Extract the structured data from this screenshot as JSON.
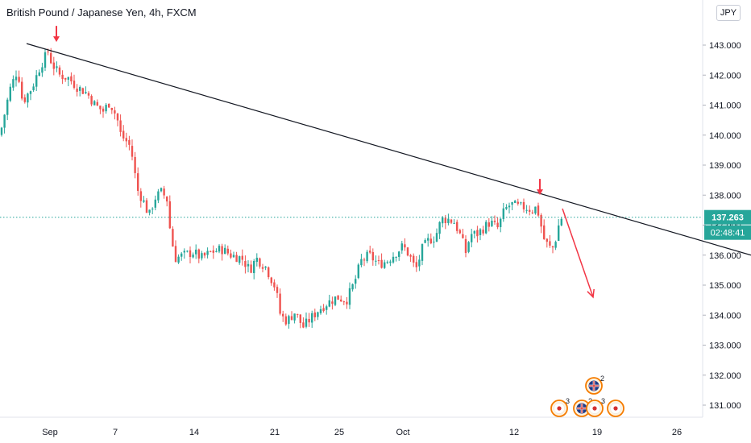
{
  "header": {
    "title": "British Pound / Japanese Yen, 4h, FXCM",
    "currency": "JPY"
  },
  "price_badge": {
    "price": "137.263",
    "countdown": "02:48:41",
    "color": "#26a69a"
  },
  "colors": {
    "up": "#26a69a",
    "down": "#ef5350",
    "trendline": "#131722",
    "arrow": "#f23645",
    "event_ring": "#f57c00"
  },
  "chart_data": {
    "type": "candlestick",
    "title": "British Pound / Japanese Yen, 4h, FXCM",
    "ylim": [
      130.6,
      144.2
    ],
    "y_ticks": [
      "143.000",
      "142.000",
      "141.000",
      "140.000",
      "139.000",
      "138.000",
      "137.000",
      "136.000",
      "135.000",
      "134.000",
      "133.000",
      "132.000",
      "131.000"
    ],
    "x_ticks": [
      "Sep",
      "7",
      "14",
      "21",
      "25",
      "Oct",
      "12",
      "19",
      "26"
    ],
    "close_path": [
      [
        0,
        140.0
      ],
      [
        12,
        141.5
      ],
      [
        22,
        142.2
      ],
      [
        28,
        141.1
      ],
      [
        40,
        141.6
      ],
      [
        50,
        142.3
      ],
      [
        60,
        142.8
      ],
      [
        64,
        142.4
      ],
      [
        74,
        142.0
      ],
      [
        85,
        141.9
      ],
      [
        96,
        141.6
      ],
      [
        108,
        141.4
      ],
      [
        118,
        141.0
      ],
      [
        128,
        140.8
      ],
      [
        136,
        141.1
      ],
      [
        145,
        140.6
      ],
      [
        150,
        140.0
      ],
      [
        160,
        139.7
      ],
      [
        165,
        139.2
      ],
      [
        170,
        138.2
      ],
      [
        178,
        137.8
      ],
      [
        185,
        137.3
      ],
      [
        192,
        137.9
      ],
      [
        200,
        138.1
      ],
      [
        207,
        137.9
      ],
      [
        212,
        136.6
      ],
      [
        218,
        135.9
      ],
      [
        228,
        136.0
      ],
      [
        240,
        136.1
      ],
      [
        250,
        135.9
      ],
      [
        262,
        136.1
      ],
      [
        275,
        136.2
      ],
      [
        287,
        136.0
      ],
      [
        300,
        135.9
      ],
      [
        310,
        135.5
      ],
      [
        318,
        135.9
      ],
      [
        330,
        135.6
      ],
      [
        342,
        134.9
      ],
      [
        348,
        134.0
      ],
      [
        356,
        133.8
      ],
      [
        366,
        134.1
      ],
      [
        376,
        133.6
      ],
      [
        386,
        133.9
      ],
      [
        396,
        134.2
      ],
      [
        406,
        134.4
      ],
      [
        418,
        134.6
      ],
      [
        430,
        134.5
      ],
      [
        440,
        135.1
      ],
      [
        448,
        135.8
      ],
      [
        458,
        136.0
      ],
      [
        470,
        135.7
      ],
      [
        480,
        135.8
      ],
      [
        492,
        136.1
      ],
      [
        500,
        136.3
      ],
      [
        508,
        136.0
      ],
      [
        516,
        135.5
      ],
      [
        524,
        136.2
      ],
      [
        532,
        136.5
      ],
      [
        540,
        136.6
      ],
      [
        548,
        137.2
      ],
      [
        556,
        137.2
      ],
      [
        564,
        137.1
      ],
      [
        572,
        136.6
      ],
      [
        578,
        136.1
      ],
      [
        584,
        136.7
      ],
      [
        592,
        136.7
      ],
      [
        600,
        136.9
      ],
      [
        608,
        137.1
      ],
      [
        618,
        136.9
      ],
      [
        626,
        137.5
      ],
      [
        634,
        137.7
      ],
      [
        644,
        137.6
      ],
      [
        652,
        137.6
      ],
      [
        660,
        137.5
      ],
      [
        666,
        137.6
      ],
      [
        670,
        137.2
      ],
      [
        674,
        136.6
      ],
      [
        678,
        136.4
      ],
      [
        684,
        136.2
      ],
      [
        688,
        136.3
      ],
      [
        692,
        136.9
      ],
      [
        697,
        137.25
      ]
    ],
    "trendline": {
      "from": [
        33,
        143.05
      ],
      "to": [
        932,
        136.0
      ]
    },
    "annotations": [
      {
        "type": "arrow-down",
        "at": [
          70,
          143.05
        ]
      },
      {
        "type": "arrow-down",
        "at": [
          670,
          137.95
        ]
      },
      {
        "type": "arrow",
        "from": [
          698,
          137.55
        ],
        "to": [
          736,
          134.6
        ]
      }
    ],
    "last_price": 137.263,
    "events": [
      {
        "flag": "gb",
        "count": "2",
        "row": 1,
        "x": 737
      },
      {
        "flag": "jp",
        "count": "3",
        "row": 2,
        "x": 694
      },
      {
        "flag": "gb",
        "count": "2",
        "row": 2,
        "x": 722
      },
      {
        "flag": "jp",
        "count": "3",
        "row": 2,
        "x": 738
      },
      {
        "flag": "jp",
        "count": "",
        "row": 2,
        "x": 764
      }
    ]
  }
}
